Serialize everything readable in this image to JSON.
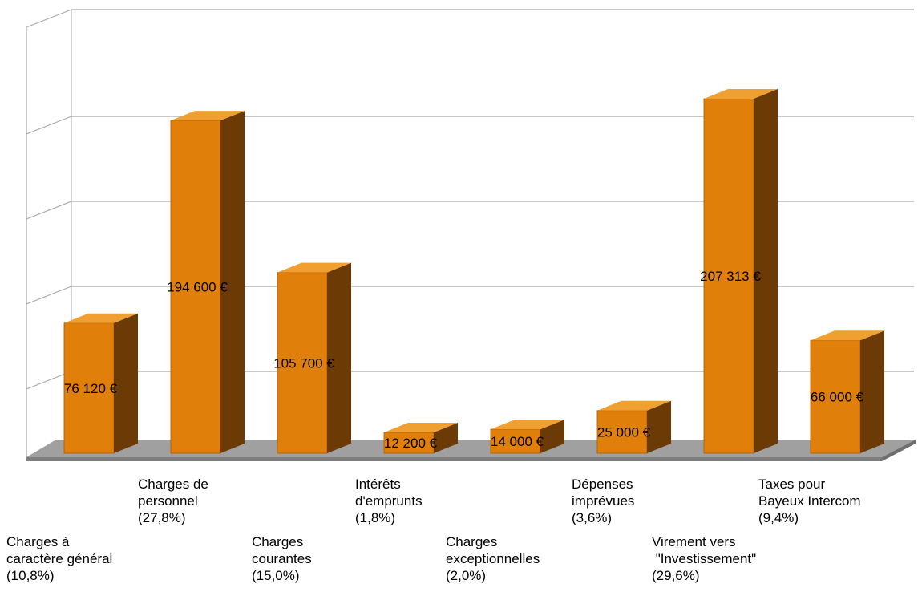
{
  "chart_data": {
    "type": "bar",
    "style": "3d-column",
    "grid": true,
    "categories": [
      {
        "lines": [
          "Charges à",
          "caractère général",
          "(10,8%)"
        ],
        "row": "lower"
      },
      {
        "lines": [
          "Charges de",
          "personnel",
          "(27,8%)"
        ],
        "row": "upper"
      },
      {
        "lines": [
          "Charges",
          "courantes",
          "(15,0%)"
        ],
        "row": "lower"
      },
      {
        "lines": [
          "Intérêts",
          "d'emprunts",
          "(1,8%)"
        ],
        "row": "upper"
      },
      {
        "lines": [
          "Charges",
          "exceptionnelles",
          "(2,0%)"
        ],
        "row": "lower"
      },
      {
        "lines": [
          "Dépenses",
          "imprévues",
          "(3,6%)"
        ],
        "row": "upper"
      },
      {
        "lines": [
          "Virement vers",
          " \"Investissement\"",
          "(29,6%)"
        ],
        "row": "lower"
      },
      {
        "lines": [
          "Taxes pour",
          "Bayeux Intercom",
          "(9,4%)"
        ],
        "row": "upper"
      }
    ],
    "values": [
      76120,
      194600,
      105700,
      12200,
      14000,
      25000,
      207313,
      66000
    ],
    "data_labels": [
      "76 120 €",
      "194 600 €",
      "105 700 €",
      "12 200 €",
      "14 000 €",
      "25 000 €",
      "207 313 €",
      "66 000 €"
    ],
    "ylim": [
      0,
      250000
    ],
    "y_gridlines": [
      50000,
      100000,
      150000,
      200000,
      250000
    ],
    "colors": {
      "bar_front": "#e07f0a",
      "bar_side": "#6b3a05",
      "bar_top": "#f0a030",
      "floor": "#a0a0a0",
      "grid": "#a8a8a8"
    }
  }
}
